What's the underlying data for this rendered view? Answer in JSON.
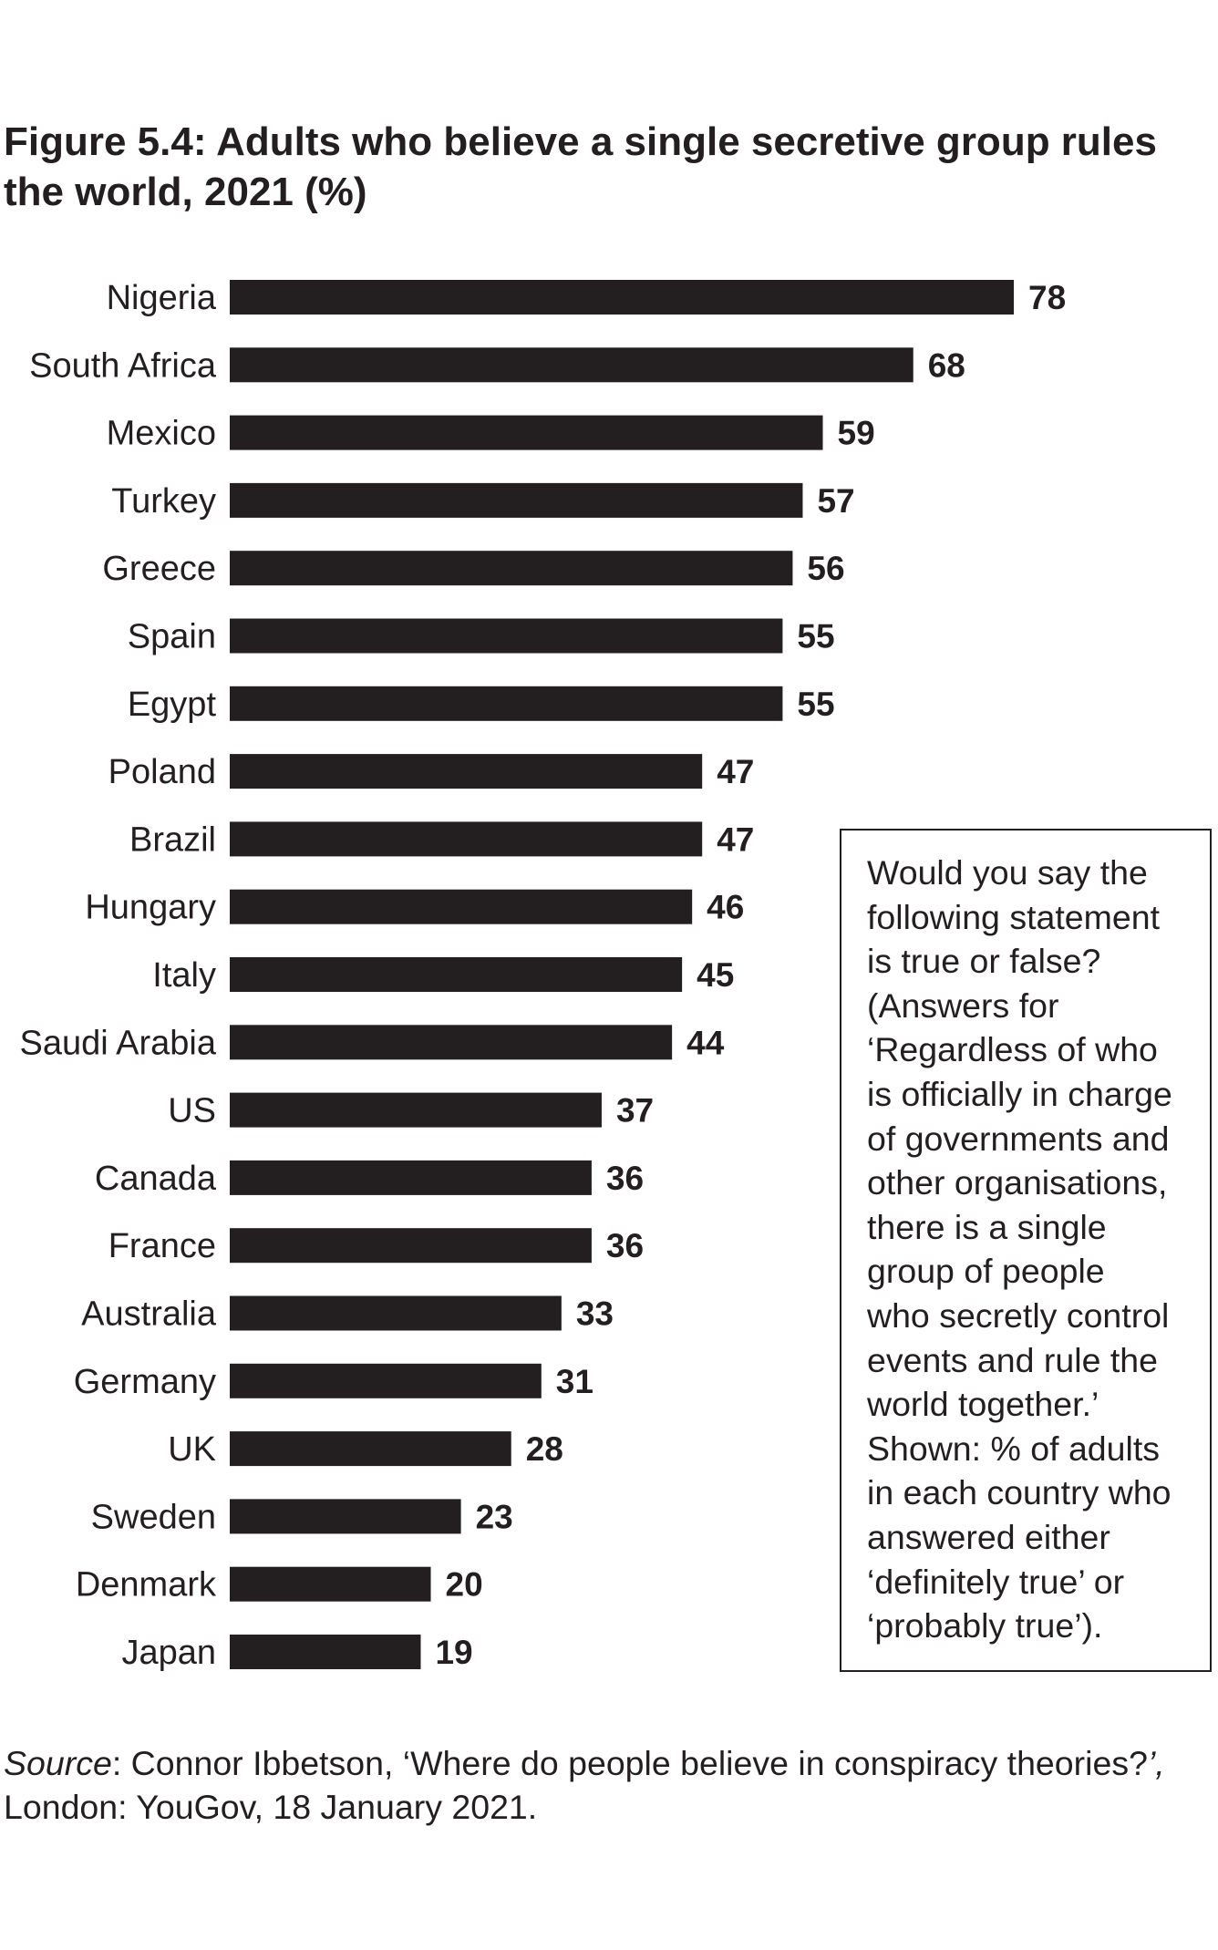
{
  "title": "Figure 5.4: Adults who believe a single secretive group rules the world, 2021 (%)",
  "chart_data": {
    "type": "bar",
    "orientation": "horizontal",
    "categories": [
      "Nigeria",
      "South Africa",
      "Mexico",
      "Turkey",
      "Greece",
      "Spain",
      "Egypt",
      "Poland",
      "Brazil",
      "Hungary",
      "Italy",
      "Saudi Arabia",
      "US",
      "Canada",
      "France",
      "Australia",
      "Germany",
      "UK",
      "Sweden",
      "Denmark",
      "Japan"
    ],
    "values": [
      78,
      68,
      59,
      57,
      56,
      55,
      55,
      47,
      47,
      46,
      45,
      44,
      37,
      36,
      36,
      33,
      31,
      28,
      23,
      20,
      19
    ],
    "data_labels": [
      "78",
      "68",
      "59",
      "57",
      "56",
      "55",
      "55",
      "47",
      "47",
      "46",
      "45",
      "44",
      "37",
      "36",
      "36",
      "33",
      "31",
      "28",
      "23",
      "20",
      "19"
    ],
    "xlim": [
      0,
      78
    ],
    "grid": false,
    "legend": "none",
    "bar_color": "#231f20"
  },
  "note": {
    "text": "Would you say the\nfollowing statement\nis true or false?\n(Answers for\n‘Regardless of who\nis officially in charge\nof governments and\nother organisations,\nthere is a single\ngroup of people\nwho secretly control\nevents and rule the\nworld together.’\nShown: % of adults\nin each country who\nanswered either\n‘definitely true’ or\n‘probably true’)."
  },
  "source": {
    "label": "Source",
    "text_before": ": Connor Ibbetson, ‘Where do people believe in conspiracy theories?",
    "italic_mark": "’,",
    "text_after": " London: YouGov, 18 January 2021."
  }
}
